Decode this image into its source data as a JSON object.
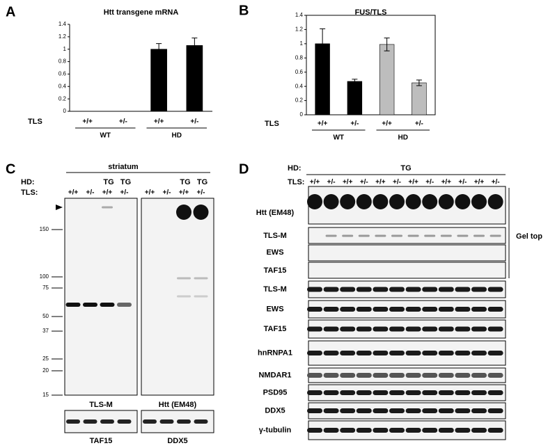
{
  "chart_data": [
    {
      "type": "bar",
      "panel": "A",
      "title": "Htt transgene mRNA",
      "row_label": "TLS",
      "categories": [
        "+/+",
        "+/-",
        "+/+",
        "+/-"
      ],
      "groups": [
        "WT",
        "HD"
      ],
      "values": [
        0,
        0,
        1.0,
        1.06
      ],
      "errors": [
        0,
        0,
        0.09,
        0.12
      ],
      "colors": [
        "#000000",
        "#000000",
        "#000000",
        "#000000"
      ],
      "ylim": [
        0,
        1.4
      ],
      "yticks": [
        0,
        0.2,
        0.4,
        0.6,
        0.8,
        1,
        1.2,
        1.4
      ],
      "grid": false
    },
    {
      "type": "bar",
      "panel": "B",
      "title": "FUS/TLS",
      "row_label": "TLS",
      "categories": [
        "+/+",
        "+/-",
        "+/+",
        "+/-"
      ],
      "groups": [
        "WT",
        "HD"
      ],
      "values": [
        1.0,
        0.47,
        0.99,
        0.45
      ],
      "errors": [
        0.21,
        0.03,
        0.09,
        0.04
      ],
      "colors": [
        "#000000",
        "#000000",
        "#bdbdbd",
        "#bdbdbd"
      ],
      "ylim": [
        0,
        1.4
      ],
      "yticks": [
        0,
        0.2,
        0.4,
        0.6,
        0.8,
        1,
        1.2,
        1.4
      ],
      "grid": false
    }
  ],
  "panel_c": {
    "label": "C",
    "tissue": "striatum",
    "hd_label": "HD:",
    "hd_lanes": [
      "TG",
      "TG",
      "TG",
      "TG"
    ],
    "tls_label": "TLS:",
    "tls_lanes": [
      "+/+",
      "+/-",
      "+/+",
      "+/-",
      "+/+",
      "+/-",
      "+/+",
      "+/-"
    ],
    "markers": [
      150,
      100,
      75,
      50,
      37,
      25,
      20,
      15
    ],
    "blots": [
      "TLS-M",
      "Htt (EM48)"
    ],
    "lower_blots": [
      "TAF15",
      "DDX5"
    ]
  },
  "panel_d": {
    "label": "D",
    "hd_label": "HD:",
    "hd_group": "TG",
    "tls_label": "TLS:",
    "tls_lanes": [
      "+/+",
      "+/-",
      "+/+",
      "+/-",
      "+/+",
      "+/-",
      "+/+",
      "+/-",
      "+/+",
      "+/-",
      "+/+",
      "+/-"
    ],
    "gel_top_blots": [
      "Htt (EM48)",
      "TLS-M",
      "EWS",
      "TAF15"
    ],
    "bracket_label": "Gel top",
    "blots": [
      "TLS-M",
      "EWS",
      "TAF15",
      "hnRNPA1",
      "NMDAR1",
      "PSD95",
      "DDX5",
      "γ-tubulin"
    ]
  }
}
